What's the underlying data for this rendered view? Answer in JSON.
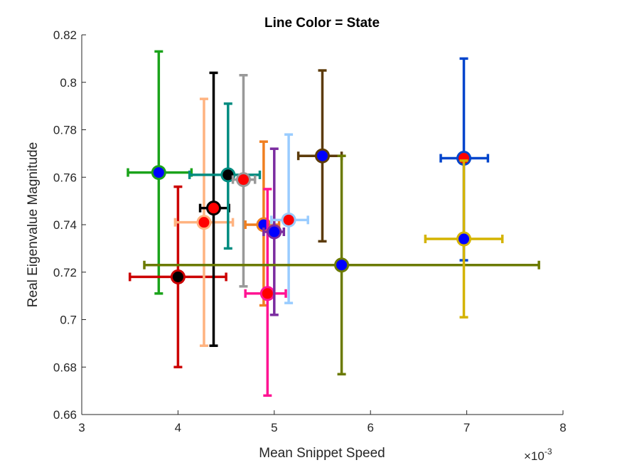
{
  "chart_data": {
    "type": "scatter",
    "title": "Line Color = State",
    "xlabel": "Mean Snippet Speed",
    "ylabel": "Real Eigenvalue Magnitude",
    "x_exponent_label": "×10",
    "x_exponent_power": "-3",
    "xlim": [
      3,
      8
    ],
    "ylim": [
      0.66,
      0.82
    ],
    "xticks": [
      3,
      4,
      5,
      6,
      7,
      8
    ],
    "xtick_labels": [
      "3",
      "4",
      "5",
      "6",
      "7",
      "8"
    ],
    "yticks": [
      0.66,
      0.68,
      0.7,
      0.72,
      0.74,
      0.76,
      0.78,
      0.8,
      0.82
    ],
    "ytick_labels": [
      "0.66",
      "0.68",
      "0.7",
      "0.72",
      "0.74",
      "0.76",
      "0.78",
      "0.8",
      "0.82"
    ],
    "grid": false,
    "legend": "none",
    "series": [
      {
        "color": "#1aa31a",
        "fill": "#0000ff",
        "x": 3.8,
        "y": 0.762,
        "xerr": [
          3.48,
          4.14
        ],
        "yerr": [
          0.711,
          0.813
        ]
      },
      {
        "color": "#cc0000",
        "fill": "#000000",
        "x": 4.0,
        "y": 0.718,
        "xerr": [
          3.5,
          4.5
        ],
        "yerr": [
          0.68,
          0.756
        ]
      },
      {
        "color": "#ffb380",
        "fill": "#ff0000",
        "x": 4.27,
        "y": 0.741,
        "xerr": [
          3.97,
          4.57
        ],
        "yerr": [
          0.689,
          0.793
        ]
      },
      {
        "color": "#000000",
        "fill": "#ff0000",
        "x": 4.37,
        "y": 0.747,
        "xerr": [
          4.23,
          4.53
        ],
        "yerr": [
          0.689,
          0.804
        ]
      },
      {
        "color": "#008c80",
        "fill": "#000000",
        "x": 4.52,
        "y": 0.761,
        "xerr": [
          4.12,
          4.85
        ],
        "yerr": [
          0.73,
          0.791
        ]
      },
      {
        "color": "#999999",
        "fill": "#ff0000",
        "x": 4.68,
        "y": 0.759,
        "xerr": [
          4.57,
          4.8
        ],
        "yerr": [
          0.714,
          0.803
        ]
      },
      {
        "color": "#f07f20",
        "fill": "#0000ff",
        "x": 4.89,
        "y": 0.74,
        "xerr": [
          4.7,
          5.05
        ],
        "yerr": [
          0.706,
          0.775
        ]
      },
      {
        "color": "#ff1493",
        "fill": "#ff0000",
        "x": 4.93,
        "y": 0.711,
        "xerr": [
          4.7,
          5.12
        ],
        "yerr": [
          0.668,
          0.755
        ]
      },
      {
        "color": "#7b2ca0",
        "fill": "#0000ff",
        "x": 5.0,
        "y": 0.737,
        "xerr": [
          4.89,
          5.1
        ],
        "yerr": [
          0.702,
          0.772
        ]
      },
      {
        "color": "#99ccff",
        "fill": "#ff0000",
        "x": 5.15,
        "y": 0.742,
        "xerr": [
          4.97,
          5.35
        ],
        "yerr": [
          0.707,
          0.778
        ]
      },
      {
        "color": "#5c3b0a",
        "fill": "#0000ff",
        "x": 5.5,
        "y": 0.769,
        "xerr": [
          5.25,
          5.7
        ],
        "yerr": [
          0.733,
          0.805
        ]
      },
      {
        "color": "#6b7a00",
        "fill": "#0000ff",
        "x": 5.7,
        "y": 0.723,
        "xerr": [
          3.65,
          7.75
        ],
        "yerr": [
          0.677,
          0.769
        ]
      },
      {
        "color": "#0044cc",
        "fill": "#ff0000",
        "x": 6.97,
        "y": 0.768,
        "xerr": [
          6.73,
          7.22
        ],
        "yerr": [
          0.725,
          0.81
        ]
      },
      {
        "color": "#d4b300",
        "fill": "#0000ff",
        "x": 6.97,
        "y": 0.734,
        "xerr": [
          6.57,
          7.37
        ],
        "yerr": [
          0.701,
          0.767
        ]
      }
    ]
  }
}
